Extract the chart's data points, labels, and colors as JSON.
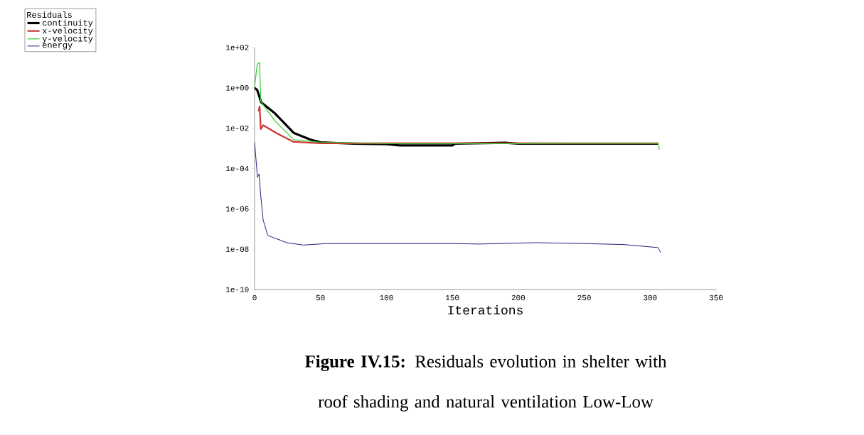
{
  "chart_data": {
    "type": "line",
    "xlabel": "Iterations",
    "legend_title": "Residuals",
    "legend": "top left",
    "log": "y",
    "annotations": [
      "**Figure IV.15:** Residuals evolution in shelter with roof shading and natural ventilation Low-Low"
    ],
    "xlim": [
      0,
      350
    ],
    "xticks": [
      0,
      50,
      100,
      150,
      200,
      250,
      300,
      350
    ],
    "ylim": [
      1e-10,
      100
    ],
    "yticks": [
      {
        "value": 100,
        "label": "1e+02"
      },
      {
        "value": 1,
        "label": "1e+00"
      },
      {
        "value": 0.01,
        "label": "1e-02"
      },
      {
        "value": 0.0001,
        "label": "1e-04"
      },
      {
        "value": 1e-06,
        "label": "1e-06"
      },
      {
        "value": 1e-08,
        "label": "1e-08"
      },
      {
        "value": 1e-10,
        "label": "1e-10"
      }
    ],
    "series": [
      {
        "name": "continuity",
        "color": "#000000",
        "x": [
          0,
          2,
          5,
          15.5,
          29.6,
          42.4,
          50,
          75,
          100,
          110,
          150,
          152,
          190,
          200,
          240,
          306
        ],
        "values": [
          1,
          0.78,
          0.19,
          0.054,
          0.0059,
          0.0027,
          0.002,
          0.0017,
          0.0016,
          0.0014,
          0.0014,
          0.0017,
          0.0019,
          0.0017,
          0.0017,
          0.0017
        ]
      },
      {
        "name": "x-velocity",
        "color": "#cc3333",
        "x": [
          3,
          3.8,
          4.7,
          6.5,
          17,
          29.6,
          50,
          100,
          200,
          306
        ],
        "values": [
          0.068,
          0.12,
          0.0091,
          0.014,
          0.0055,
          0.0021,
          0.0018,
          0.0018,
          0.0018,
          0.0018
        ]
      },
      {
        "name": "y-velocity",
        "color": "#33cc33",
        "x": [
          0,
          2,
          3.8,
          4.7,
          15.5,
          29.6,
          50,
          75,
          100,
          200,
          240,
          306,
          307
        ],
        "values": [
          1.1,
          15,
          18,
          0.21,
          0.023,
          0.0027,
          0.002,
          0.0019,
          0.0017,
          0.0017,
          0.0018,
          0.0018,
          0.00089
        ]
      },
      {
        "name": "energy",
        "color": "#202080",
        "x": [
          0,
          1,
          2.2,
          3.4,
          4.7,
          6.5,
          10,
          24.4,
          37,
          54,
          100,
          150,
          170,
          213.5,
          250,
          280,
          306,
          308
        ],
        "values": [
          0.0021,
          0.00032,
          3.6e-05,
          5.4e-05,
          4.2e-06,
          2.8e-07,
          4.8e-08,
          2.1e-08,
          1.6e-08,
          1.9e-08,
          1.9e-08,
          1.9e-08,
          1.8e-08,
          2.1e-08,
          1.9e-08,
          1.7e-08,
          1.2e-08,
          6.6e-09
        ]
      }
    ]
  }
}
